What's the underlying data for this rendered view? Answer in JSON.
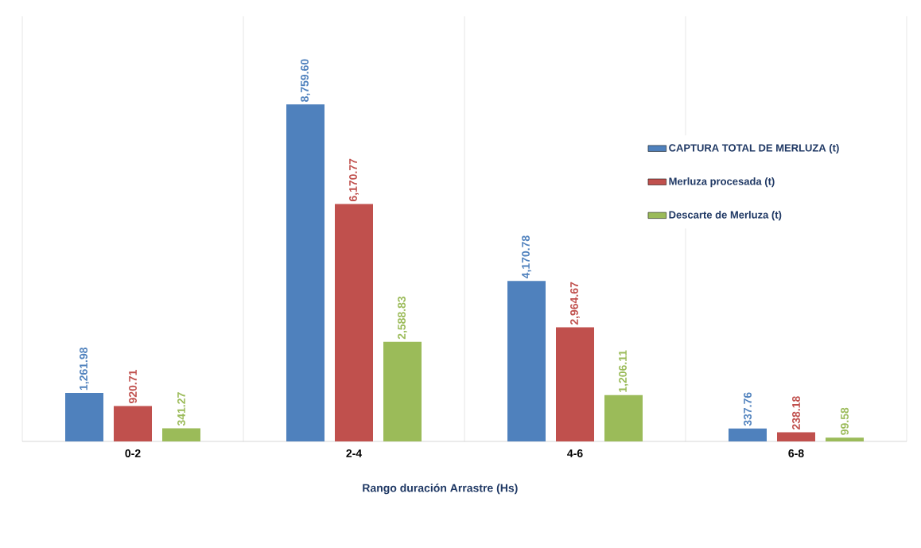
{
  "chart_data": {
    "type": "bar",
    "xlabel": "Rango duración Arrastre (Hs)",
    "categories": [
      "0-2",
      "2-4",
      "4-6",
      "6-8"
    ],
    "series": [
      {
        "name": "CAPTURA TOTAL DE MERLUZA (t)",
        "color": "#4f81bd",
        "values": [
          1261.98,
          8759.6,
          4170.78,
          337.76
        ],
        "value_labels": [
          "1,261.98",
          "8,759.60",
          "4,170.78",
          "337.76"
        ]
      },
      {
        "name": "Merluza procesada  (t)",
        "color": "#c0504d",
        "values": [
          920.71,
          6170.77,
          2964.67,
          238.18
        ],
        "value_labels": [
          "920.71",
          "6,170.77",
          "2,964.67",
          "238.18"
        ]
      },
      {
        "name": "Descarte de Merluza (t)",
        "color": "#9bbb59",
        "values": [
          341.27,
          2588.83,
          1206.11,
          99.58
        ],
        "value_labels": [
          "341.27",
          "2,588.83",
          "1,206.11",
          "99.58"
        ]
      }
    ],
    "grid": "x",
    "legend": "right"
  }
}
